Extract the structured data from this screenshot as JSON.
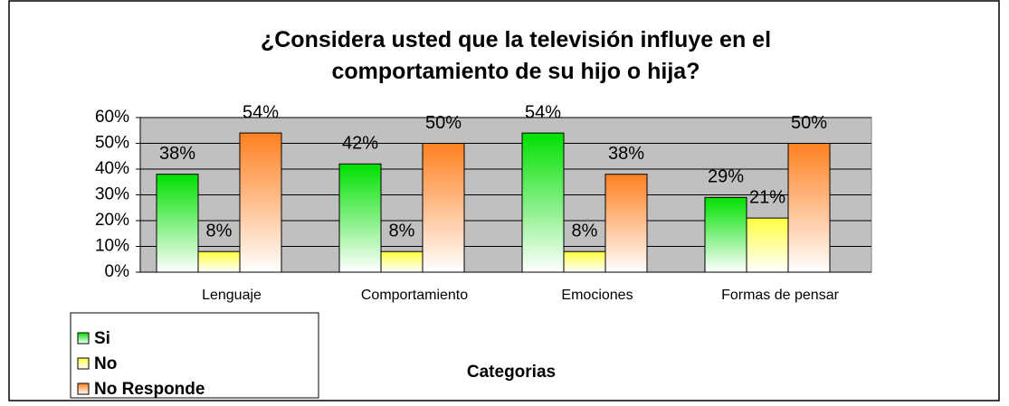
{
  "chart_data": {
    "type": "bar",
    "title": "¿Considera usted que la televisión  influye  en el comportamiento de su hijo o hija?",
    "x_label": "Categorias",
    "categories": [
      "Lenguaje",
      "Comportamiento",
      "Emociones",
      "Formas de pensar"
    ],
    "series": [
      {
        "name": "Si",
        "color": "#00e000",
        "values": [
          38,
          42,
          54,
          29
        ],
        "value_labels": [
          "38%",
          "42%",
          "54%",
          "29%"
        ]
      },
      {
        "name": "No",
        "color": "#ffff40",
        "values": [
          8,
          8,
          8,
          21
        ],
        "value_labels": [
          "8%",
          "8%",
          "8%",
          "21%"
        ]
      },
      {
        "name": "No Responde",
        "color": "#ff8020",
        "values": [
          54,
          50,
          38,
          50
        ],
        "value_labels": [
          "54%",
          "50%",
          "38%",
          "50%"
        ]
      }
    ],
    "ylim": [
      0,
      60
    ],
    "yticks": [
      {
        "value": 0,
        "label": "0%"
      },
      {
        "value": 10,
        "label": "10%"
      },
      {
        "value": 20,
        "label": "20%"
      },
      {
        "value": 30,
        "label": "30%"
      },
      {
        "value": 40,
        "label": "40%"
      },
      {
        "value": 50,
        "label": "50%"
      },
      {
        "value": 60,
        "label": "60%"
      }
    ],
    "grid": true,
    "legend": "bottom-left"
  }
}
